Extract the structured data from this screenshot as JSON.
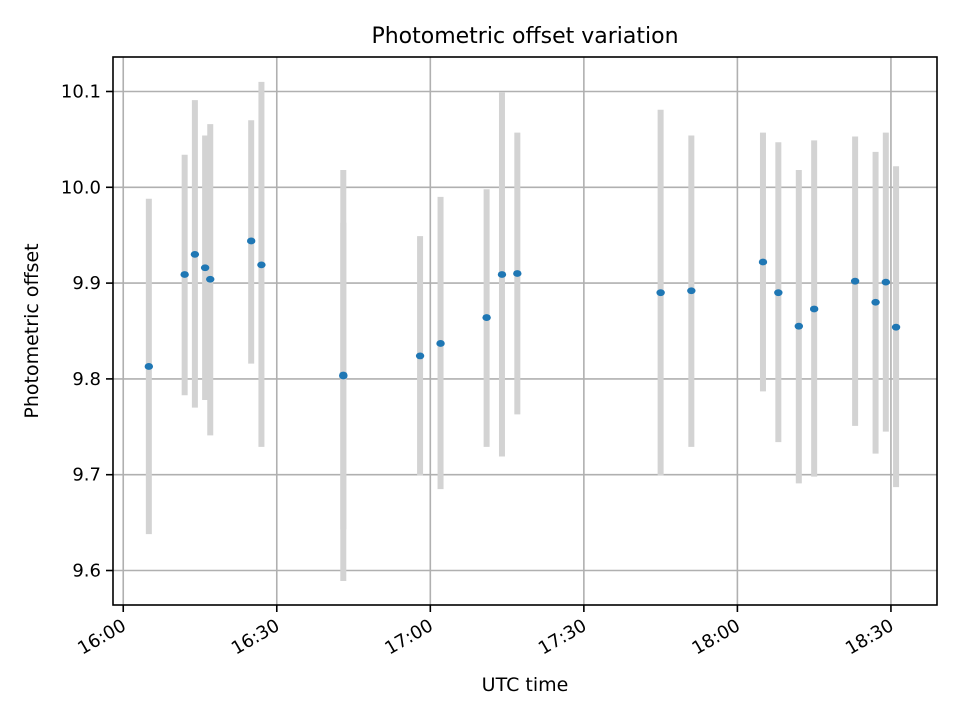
{
  "chart_data": {
    "type": "scatter",
    "title": "Photometric offset variation",
    "xlabel": "UTC time",
    "ylabel": "Photometric offset",
    "xlim": [
      "15:58",
      "18:39"
    ],
    "ylim": [
      9.564,
      10.136
    ],
    "grid": true,
    "x_ticks": [
      "16:00",
      "16:30",
      "17:00",
      "17:30",
      "18:00",
      "18:30"
    ],
    "y_ticks": [
      "9.6",
      "9.7",
      "9.8",
      "9.9",
      "10.0",
      "10.1"
    ],
    "colors": {
      "point": "#1f77b4",
      "errorbar": "#d3d3d3",
      "grid": "#b0b0b0"
    },
    "series": [
      {
        "points": [
          {
            "x": "16:05",
            "y": 9.813,
            "ylo": 9.638,
            "yhi": 9.988
          },
          {
            "x": "16:12",
            "y": 9.909,
            "ylo": 9.783,
            "yhi": 10.034
          },
          {
            "x": "16:14",
            "y": 9.93,
            "ylo": 9.77,
            "yhi": 10.091
          },
          {
            "x": "16:16",
            "y": 9.916,
            "ylo": 9.778,
            "yhi": 10.054
          },
          {
            "x": "16:17",
            "y": 9.904,
            "ylo": 9.741,
            "yhi": 10.066
          },
          {
            "x": "16:25",
            "y": 9.944,
            "ylo": 9.816,
            "yhi": 10.07
          },
          {
            "x": "16:27",
            "y": 9.919,
            "ylo": 9.729,
            "yhi": 10.11
          },
          {
            "x": "16:43",
            "y": 9.803,
            "ylo": 9.643,
            "yhi": 9.963
          },
          {
            "x": "16:43",
            "y": 9.804,
            "ylo": 9.589,
            "yhi": 10.018
          },
          {
            "x": "16:58",
            "y": 9.824,
            "ylo": 9.699,
            "yhi": 9.949
          },
          {
            "x": "17:02",
            "y": 9.837,
            "ylo": 9.685,
            "yhi": 9.99
          },
          {
            "x": "17:11",
            "y": 9.864,
            "ylo": 9.729,
            "yhi": 9.998
          },
          {
            "x": "17:14",
            "y": 9.909,
            "ylo": 9.719,
            "yhi": 10.099
          },
          {
            "x": "17:17",
            "y": 9.91,
            "ylo": 9.763,
            "yhi": 10.057
          },
          {
            "x": "17:45",
            "y": 9.89,
            "ylo": 9.699,
            "yhi": 10.081
          },
          {
            "x": "17:51",
            "y": 9.892,
            "ylo": 9.729,
            "yhi": 10.054
          },
          {
            "x": "18:05",
            "y": 9.922,
            "ylo": 9.787,
            "yhi": 10.057
          },
          {
            "x": "18:08",
            "y": 9.89,
            "ylo": 9.734,
            "yhi": 10.047
          },
          {
            "x": "18:12",
            "y": 9.855,
            "ylo": 9.691,
            "yhi": 10.018
          },
          {
            "x": "18:15",
            "y": 9.873,
            "ylo": 9.698,
            "yhi": 10.049
          },
          {
            "x": "18:23",
            "y": 9.902,
            "ylo": 9.751,
            "yhi": 10.053
          },
          {
            "x": "18:27",
            "y": 9.88,
            "ylo": 9.722,
            "yhi": 10.037
          },
          {
            "x": "18:29",
            "y": 9.901,
            "ylo": 9.745,
            "yhi": 10.057
          },
          {
            "x": "18:31",
            "y": 9.854,
            "ylo": 9.687,
            "yhi": 10.022
          }
        ]
      }
    ]
  }
}
